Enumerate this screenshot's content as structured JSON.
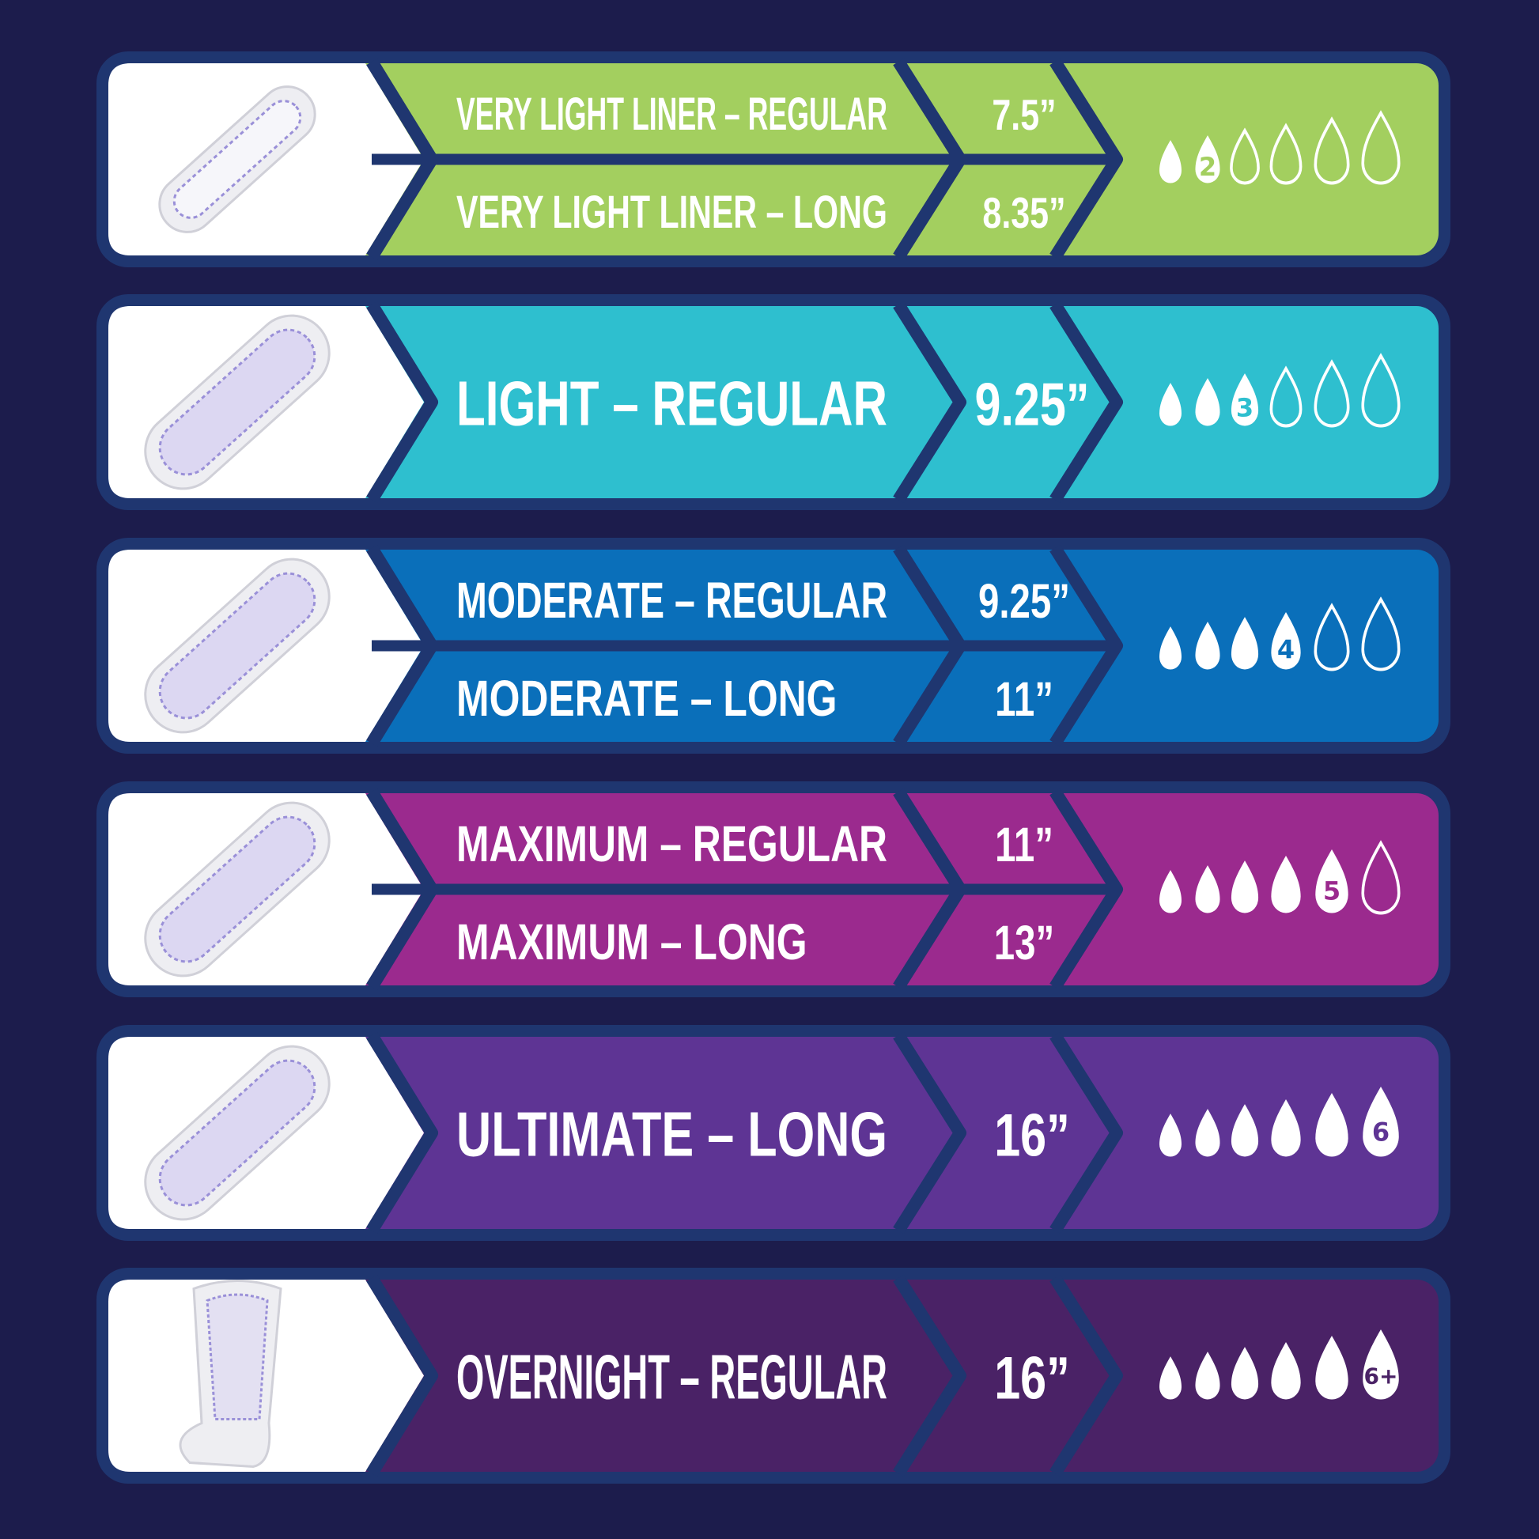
{
  "colors": {
    "background": "#1c1c4c",
    "border": "#1f3670",
    "panel": "#ffffff",
    "text": "#ffffff"
  },
  "rows": [
    {
      "color": "#a3cf5f",
      "image": "liner-pad-image",
      "products": [
        {
          "name": "VERY LIGHT LINER – REGULAR",
          "length": "7.5”"
        },
        {
          "name": "VERY LIGHT LINER – LONG",
          "length": "8.35”"
        }
      ],
      "absorbency_level": 2,
      "absorbency_label": "2",
      "drops_total": 6
    },
    {
      "color": "#2ebfcf",
      "image": "light-pad-image",
      "products": [
        {
          "name": "LIGHT – REGULAR",
          "length": "9.25”"
        }
      ],
      "absorbency_level": 3,
      "absorbency_label": "3",
      "drops_total": 6
    },
    {
      "color": "#0a6fba",
      "image": "moderate-pad-image",
      "products": [
        {
          "name": "MODERATE – REGULAR",
          "length": "9.25”"
        },
        {
          "name": "MODERATE – LONG",
          "length": "11”"
        }
      ],
      "absorbency_level": 4,
      "absorbency_label": "4",
      "drops_total": 6
    },
    {
      "color": "#9b2a8e",
      "image": "maximum-pad-image",
      "products": [
        {
          "name": "MAXIMUM – REGULAR",
          "length": "11”"
        },
        {
          "name": "MAXIMUM – LONG",
          "length": "13”"
        }
      ],
      "absorbency_level": 5,
      "absorbency_label": "5",
      "drops_total": 6
    },
    {
      "color": "#5e3494",
      "image": "ultimate-pad-image",
      "products": [
        {
          "name": "ULTIMATE – LONG",
          "length": "16”"
        }
      ],
      "absorbency_level": 6,
      "absorbency_label": "6",
      "drops_total": 6
    },
    {
      "color": "#4a2266",
      "image": "overnight-pad-image",
      "products": [
        {
          "name": "OVERNIGHT – REGULAR",
          "length": "16”"
        }
      ],
      "absorbency_level": 6,
      "absorbency_label": "6+",
      "drops_total": 6
    }
  ]
}
